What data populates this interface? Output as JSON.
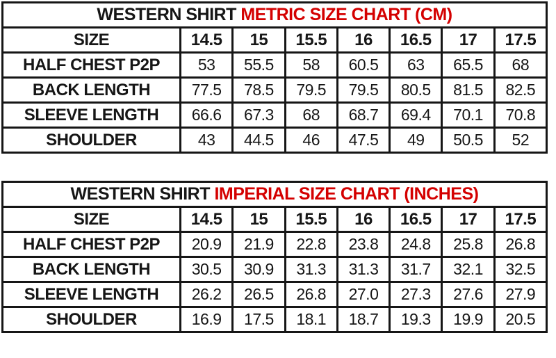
{
  "colors": {
    "text": "#161616",
    "title_accent_red": "#d40000",
    "border": "#161616",
    "background": "#ffffff"
  },
  "tables": [
    {
      "id": "metric",
      "title_black": "WESTERN SHIRT",
      "title_red": "METRIC SIZE CHART (CM)",
      "header": [
        "SIZE",
        "14.5",
        "15",
        "15.5",
        "16",
        "16.5",
        "17",
        "17.5"
      ],
      "rows": [
        {
          "label": "HALF CHEST P2P",
          "values": [
            "53",
            "55.5",
            "58",
            "60.5",
            "63",
            "65.5",
            "68"
          ]
        },
        {
          "label": "BACK LENGTH",
          "values": [
            "77.5",
            "78.5",
            "79.5",
            "79.5",
            "80.5",
            "81.5",
            "82.5"
          ]
        },
        {
          "label": "SLEEVE LENGTH",
          "values": [
            "66.6",
            "67.3",
            "68",
            "68.7",
            "69.4",
            "70.1",
            "70.8"
          ]
        },
        {
          "label": "SHOULDER",
          "values": [
            "43",
            "44.5",
            "46",
            "47.5",
            "49",
            "50.5",
            "52"
          ]
        }
      ]
    },
    {
      "id": "imperial",
      "title_black": "WESTERN SHIRT",
      "title_red": "IMPERIAL SIZE CHART (INCHES)",
      "header": [
        "SIZE",
        "14.5",
        "15",
        "15.5",
        "16",
        "16.5",
        "17",
        "17.5"
      ],
      "rows": [
        {
          "label": "HALF CHEST P2P",
          "values": [
            "20.9",
            "21.9",
            "22.8",
            "23.8",
            "24.8",
            "25.8",
            "26.8"
          ]
        },
        {
          "label": "BACK LENGTH",
          "values": [
            "30.5",
            "30.9",
            "31.3",
            "31.3",
            "31.7",
            "32.1",
            "32.5"
          ]
        },
        {
          "label": "SLEEVE LENGTH",
          "values": [
            "26.2",
            "26.5",
            "26.8",
            "27.0",
            "27.3",
            "27.6",
            "27.9"
          ]
        },
        {
          "label": "SHOULDER",
          "values": [
            "16.9",
            "17.5",
            "18.1",
            "18.7",
            "19.3",
            "19.9",
            "20.5"
          ]
        }
      ]
    }
  ],
  "chart_data": [
    {
      "type": "table",
      "title": "WESTERN SHIRT METRIC SIZE CHART (CM)",
      "columns": [
        "SIZE",
        "14.5",
        "15",
        "15.5",
        "16",
        "16.5",
        "17",
        "17.5"
      ],
      "rows": [
        [
          "HALF CHEST P2P",
          53,
          55.5,
          58,
          60.5,
          63,
          65.5,
          68
        ],
        [
          "BACK LENGTH",
          77.5,
          78.5,
          79.5,
          79.5,
          80.5,
          81.5,
          82.5
        ],
        [
          "SLEEVE LENGTH",
          66.6,
          67.3,
          68,
          68.7,
          69.4,
          70.1,
          70.8
        ],
        [
          "SHOULDER",
          43,
          44.5,
          46,
          47.5,
          49,
          50.5,
          52
        ]
      ]
    },
    {
      "type": "table",
      "title": "WESTERN SHIRT IMPERIAL SIZE CHART (INCHES)",
      "columns": [
        "SIZE",
        "14.5",
        "15",
        "15.5",
        "16",
        "16.5",
        "17",
        "17.5"
      ],
      "rows": [
        [
          "HALF CHEST P2P",
          20.9,
          21.9,
          22.8,
          23.8,
          24.8,
          25.8,
          26.8
        ],
        [
          "BACK LENGTH",
          30.5,
          30.9,
          31.3,
          31.3,
          31.7,
          32.1,
          32.5
        ],
        [
          "SLEEVE LENGTH",
          26.2,
          26.5,
          26.8,
          27.0,
          27.3,
          27.6,
          27.9
        ],
        [
          "SHOULDER",
          16.9,
          17.5,
          18.1,
          18.7,
          19.3,
          19.9,
          20.5
        ]
      ]
    }
  ]
}
